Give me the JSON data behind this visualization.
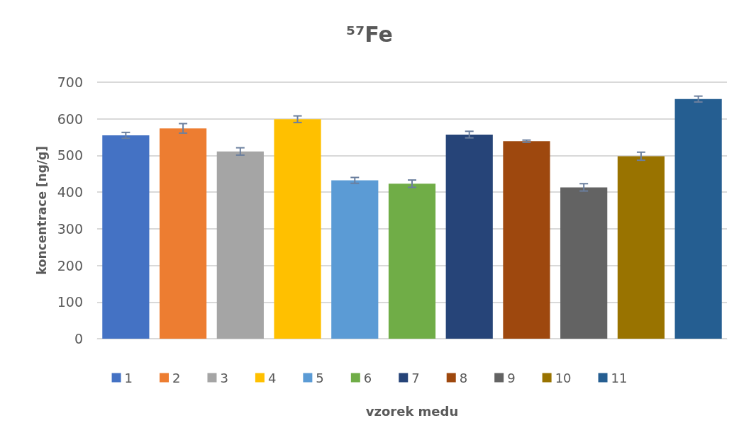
{
  "chart_data": {
    "type": "bar",
    "title": "⁵⁷Fe",
    "xlabel": "vzorek medu",
    "ylabel": "koncentrace [ng/g]",
    "categories": [
      null
    ],
    "series": [
      {
        "name": "1",
        "color": "#4472c4",
        "values": [
          555
        ],
        "errors": [
          8
        ]
      },
      {
        "name": "2",
        "color": "#ed7d31",
        "values": [
          574
        ],
        "errors": [
          13
        ]
      },
      {
        "name": "3",
        "color": "#a5a5a5",
        "values": [
          511
        ],
        "errors": [
          10
        ]
      },
      {
        "name": "4",
        "color": "#ffc000",
        "values": [
          599
        ],
        "errors": [
          9
        ]
      },
      {
        "name": "5",
        "color": "#5b9bd5",
        "values": [
          432
        ],
        "errors": [
          8
        ]
      },
      {
        "name": "6",
        "color": "#70ad47",
        "values": [
          423
        ],
        "errors": [
          10
        ]
      },
      {
        "name": "7",
        "color": "#264478",
        "values": [
          557
        ],
        "errors": [
          9
        ]
      },
      {
        "name": "8",
        "color": "#9e480e",
        "values": [
          539
        ],
        "errors": [
          3
        ]
      },
      {
        "name": "9",
        "color": "#636363",
        "values": [
          413
        ],
        "errors": [
          10
        ]
      },
      {
        "name": "10",
        "color": "#997300",
        "values": [
          498
        ],
        "errors": [
          11
        ]
      },
      {
        "name": "11",
        "color": "#255e91",
        "values": [
          654
        ],
        "errors": [
          8
        ]
      }
    ],
    "ylim": [
      0,
      700
    ],
    "yticks": [
      0,
      100,
      200,
      300,
      400,
      500,
      600,
      700
    ],
    "grid": "y",
    "legend": "bottom",
    "tick_labels": "y"
  }
}
